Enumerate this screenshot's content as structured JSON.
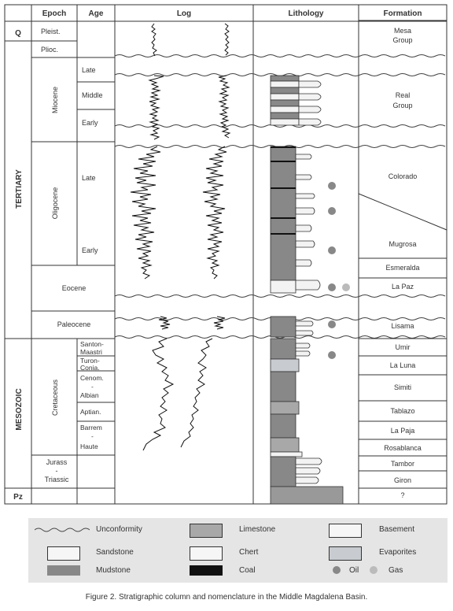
{
  "headers": {
    "epoch": "Epoch",
    "age": "Age",
    "log": "Log",
    "lithology": "Lithology",
    "formation": "Formation"
  },
  "eras": {
    "q": "Q",
    "tertiary": "TERTIARY",
    "mesozoic": "MESOZOIC",
    "pz": "Pz"
  },
  "epochs": {
    "pleist": "Pleist.",
    "plioc": "Plioc.",
    "miocene": "Miocene",
    "oligocene": "Oligocene",
    "eocene": "Eocene",
    "paleocene": "Paleocene",
    "cretaceous": "Cretaceous",
    "jurass": "Jurass",
    "dash": "-",
    "triassic": "Triassic"
  },
  "ages": {
    "late": "Late",
    "middle": "Middle",
    "early": "Early",
    "santon": "Santon-",
    "maastri": "Maastri",
    "turon": "Turon-",
    "conia": "Conia.",
    "cenom": "Cenom.",
    "albian": "Albian",
    "aptian": "Aptian.",
    "barrem": "Barrem",
    "haute": "Haute"
  },
  "formations": {
    "mesa1": "Mesa",
    "mesa2": "Group",
    "real1": "Real",
    "real2": "Group",
    "colorado": "Colorado",
    "mugrosa": "Mugrosa",
    "esmeralda": "Esmeralda",
    "lapaz": "La Paz",
    "lisama": "Lisama",
    "umir": "Umir",
    "laluna": "La Luna",
    "simiti": "Simiti",
    "tablazo": "Tablazo",
    "lapaja": "La Paja",
    "rosablanca": "Rosablanca",
    "tambor": "Tambor",
    "giron": "Giron",
    "unknown": "?"
  },
  "legend": {
    "unconformity": "Unconformity",
    "limestone": "Limestone",
    "basement": "Basement",
    "sandstone": "Sandstone",
    "chert": "Chert",
    "evaporites": "Evaporites",
    "mudstone": "Mudstone",
    "coal": "Coal",
    "oil": "Oil",
    "gas": "Gas"
  },
  "colors": {
    "mudstone": "#888888",
    "limestone": "#a8a8a8",
    "evaporites": "#c8ccd0",
    "sandstone": "#f3f3f3",
    "coal": "#111111",
    "oil": "#888888",
    "gas": "#bbbbbb",
    "basement": "#999999"
  },
  "caption": "Figure 2. Stratigraphic column and nomenclature in the Middle Magdalena Basin."
}
